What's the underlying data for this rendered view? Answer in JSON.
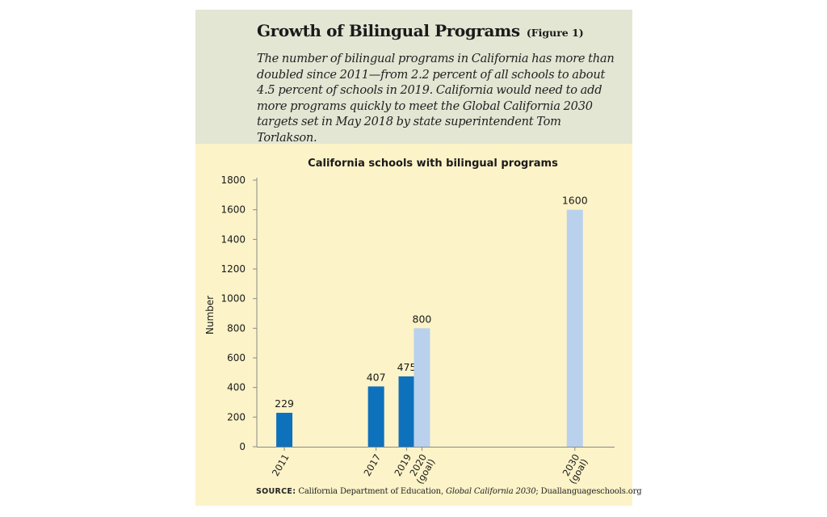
{
  "header": {
    "title": "Growth of Bilingual Programs",
    "figure_label": "(Figure 1)",
    "subtitle": "The number of bilingual programs in California has more than doubled since 2011—from 2.2 percent of all schools to about 4.5 percent of schools in 2019. California would need to add more programs quickly to meet the Global California 2030 targets set in May 2018 by state superintendent Tom Torlakson."
  },
  "colors": {
    "actual": "#0e71bb",
    "goal": "#b9d1ec",
    "header_bg": "#e2e6d3",
    "chart_bg": "#fcf3c8"
  },
  "chart_data": {
    "type": "bar",
    "title": "California schools with bilingual programs",
    "ylabel": "Number",
    "xlabel": "",
    "ylim": [
      0,
      1800
    ],
    "yticks": [
      0,
      200,
      400,
      600,
      800,
      1000,
      1200,
      1400,
      1600,
      1800
    ],
    "grid": false,
    "bars": [
      {
        "year": 2011,
        "label": [
          "2011"
        ],
        "value": 229,
        "kind": "actual"
      },
      {
        "year": 2017,
        "label": [
          "2017"
        ],
        "value": 407,
        "kind": "actual"
      },
      {
        "year": 2019,
        "label": [
          "2019"
        ],
        "value": 475,
        "kind": "actual"
      },
      {
        "year": 2020,
        "label": [
          "2020",
          "(goal)"
        ],
        "value": 800,
        "kind": "goal"
      },
      {
        "year": 2030,
        "label": [
          "2030",
          "(goal)"
        ],
        "value": 1600,
        "kind": "goal"
      }
    ]
  },
  "source": {
    "label": "SOURCE:",
    "text_before": " California Department of Education, ",
    "text_italic": "Global California 2030",
    "text_after": "; Duallanguageschools.org"
  }
}
